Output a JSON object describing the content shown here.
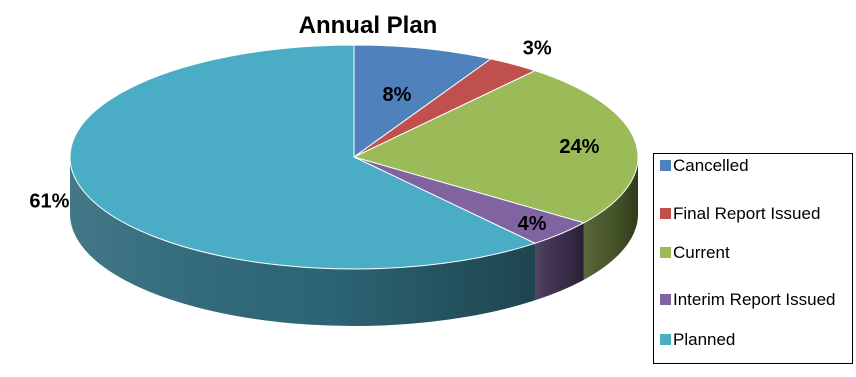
{
  "chart_data": {
    "type": "pie",
    "title": "Annual Plan",
    "three_d": true,
    "legend_position": "right",
    "slices": [
      {
        "label": "Cancelled",
        "value": 8,
        "display": "8%",
        "color": "#4f81bd",
        "side_color": "#2f4d71"
      },
      {
        "label": "Final Report Issued",
        "value": 3,
        "display": "3%",
        "color": "#c0504d",
        "side_color": "#73302e"
      },
      {
        "label": "Current",
        "value": 24,
        "display": "24%",
        "color": "#9bbb59",
        "side_color": "#4a5a2a"
      },
      {
        "label": "Interim Report Issued",
        "value": 4,
        "display": "4%",
        "color": "#8064a2",
        "side_color": "#3f3150"
      },
      {
        "label": "Planned",
        "value": 61,
        "display": "61%",
        "color": "#4bacc6",
        "side_color": "#2e6a7a"
      }
    ]
  }
}
